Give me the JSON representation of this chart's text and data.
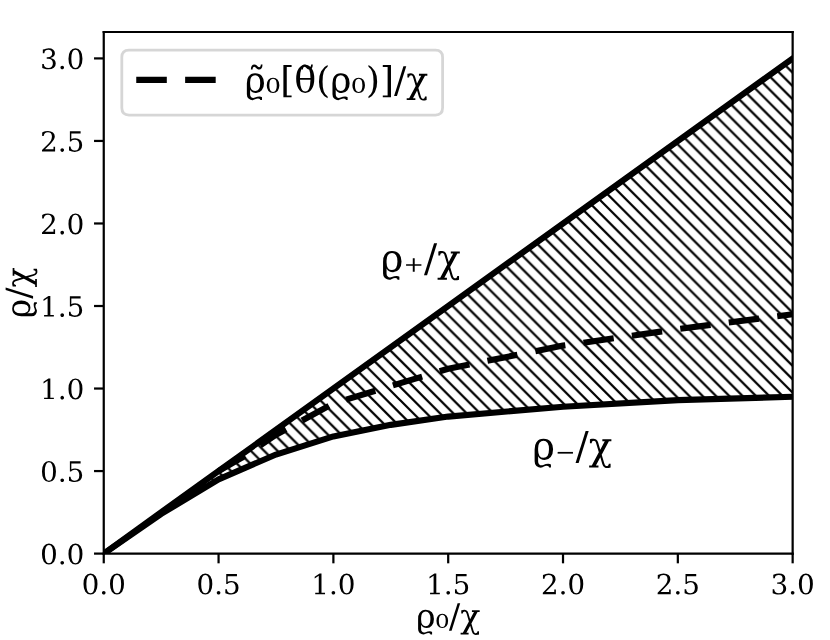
{
  "chart_data": {
    "type": "line",
    "xlabel": "ϱ₀/χ",
    "ylabel": "ϱ/χ",
    "xlim": [
      0,
      3
    ],
    "ylim": [
      0,
      3.16
    ],
    "xticks": [
      {
        "value": 0,
        "label": "0.0"
      },
      0.5,
      {
        "value": 1,
        "label": "1.0"
      },
      1.5,
      {
        "value": 2,
        "label": "2.0"
      },
      2.5,
      {
        "value": 3,
        "label": "3.0"
      }
    ],
    "yticks": [
      {
        "value": 0,
        "label": "0.0"
      },
      0.5,
      {
        "value": 1,
        "label": "1.0"
      },
      1.5,
      {
        "value": 2,
        "label": "2.0"
      },
      2.5,
      {
        "value": 3,
        "label": "3.0"
      }
    ],
    "grid": false,
    "legend": "top left",
    "marker": "none",
    "series": [
      {
        "type": "line",
        "color": "#000000",
        "line_style": "solid",
        "x": [
          0,
          0.25,
          0.5,
          0.75,
          1,
          1.25,
          1.5,
          2,
          2.5,
          3
        ],
        "values": [
          0,
          0.25,
          0.5,
          0.75,
          1,
          1.25,
          1.5,
          2,
          2.5,
          3
        ],
        "lower": [
          0,
          0.24,
          0.45,
          0.6,
          0.71,
          0.78,
          0.83,
          0.89,
          0.93,
          0.95
        ],
        "upper": [
          0,
          0.25,
          0.5,
          0.75,
          1,
          1.25,
          1.5,
          2,
          2.5,
          3
        ]
      },
      {
        "type": "line",
        "color": "#000000",
        "line_style": "solid",
        "x": [
          0,
          0.25,
          0.5,
          0.75,
          1,
          1.25,
          1.5,
          2,
          2.5,
          3
        ],
        "values": [
          0,
          0.24,
          0.45,
          0.6,
          0.71,
          0.78,
          0.83,
          0.89,
          0.93,
          0.95
        ]
      },
      {
        "name": "ϱ̃₀[θ̃(ϱ₀)]/χ",
        "color": "#000000",
        "line_style": "dashed",
        "x": [
          0.5,
          0.6,
          0.75,
          1,
          1.5,
          2,
          2.5,
          3
        ],
        "values": [
          0.5,
          0.58,
          0.72,
          0.91,
          1.12,
          1.26,
          1.36,
          1.45
        ]
      }
    ],
    "annotations": [
      "ϱ₊/χ",
      "ϱ₋/χ"
    ]
  }
}
